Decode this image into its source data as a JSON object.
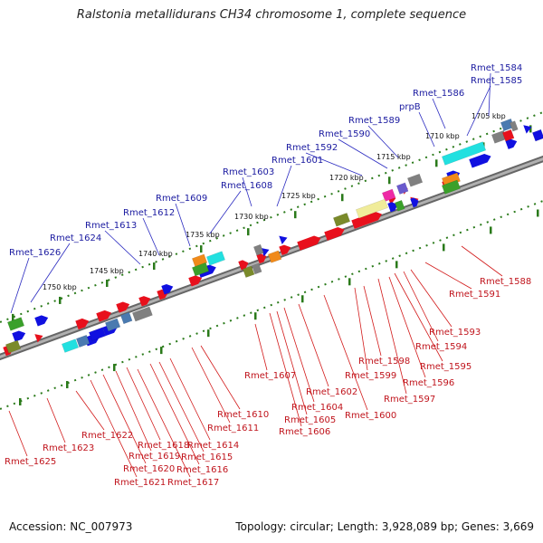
{
  "title": "Ralstonia metallidurans CH34 chromosome 1, complete sequence",
  "accession": "Accession: NC_007973",
  "summary": "Topology: circular; Length: 3,928,089 bp; Genes: 3,669",
  "colors": {
    "forward": "#e8101c",
    "reverse": "#1010e0",
    "cyan": "#22e0e0",
    "green": "#3aa02a",
    "olive": "#7a8a2a",
    "orange": "#f08a1a",
    "magenta": "#ee2aa6",
    "gray": "#808080",
    "pale_yellow": "#f0ec9a",
    "purple": "#6a5acd",
    "steel": "#4a7ab0",
    "tick": "#2a7a1a",
    "backbone": "#8a8a8a"
  },
  "kbp_labels": [
    "1705 kbp",
    "1710 kbp",
    "1715 kbp",
    "1720 kbp",
    "1725 kbp",
    "1730 kbp",
    "1735 kbp",
    "1740 kbp",
    "1745 kbp",
    "1750 kbp"
  ],
  "top_genes": [
    "Rmet_1584",
    "Rmet_1585",
    "Rmet_1586",
    "prpB",
    "Rmet_1589",
    "Rmet_1590",
    "Rmet_1592",
    "Rmet_1601",
    "Rmet_1603",
    "Rmet_1608",
    "Rmet_1609",
    "Rmet_1612",
    "Rmet_1613",
    "Rmet_1624",
    "Rmet_1626"
  ],
  "bottom_genes": [
    "Rmet_1588",
    "Rmet_1591",
    "Rmet_1593",
    "Rmet_1594",
    "Rmet_1595",
    "Rmet_1596",
    "Rmet_1597",
    "Rmet_1598",
    "Rmet_1599",
    "Rmet_1600",
    "Rmet_1602",
    "Rmet_1604",
    "Rmet_1605",
    "Rmet_1606",
    "Rmet_1607",
    "Rmet_1610",
    "Rmet_1611",
    "Rmet_1614",
    "Rmet_1615",
    "Rmet_1616",
    "Rmet_1617",
    "Rmet_1618",
    "Rmet_1619",
    "Rmet_1620",
    "Rmet_1621",
    "Rmet_1622",
    "Rmet_1623",
    "Rmet_1625"
  ]
}
